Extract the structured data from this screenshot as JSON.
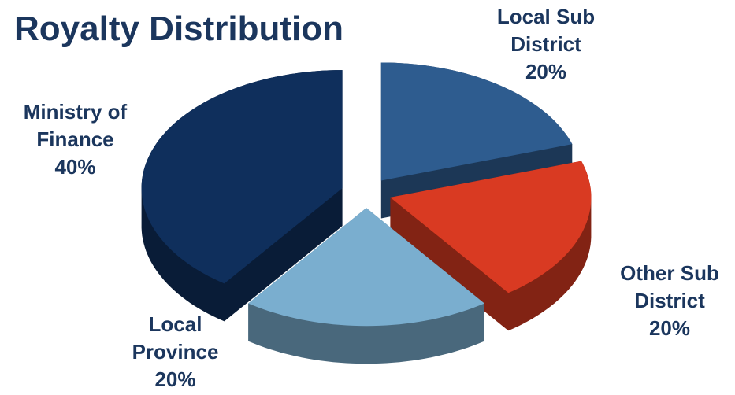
{
  "chart_data": {
    "type": "pie",
    "title": "Royalty Distribution",
    "categories": [
      "Local Sub District",
      "Other Sub District",
      "Local Province",
      "Ministry of Finance"
    ],
    "values": [
      20,
      20,
      20,
      40
    ],
    "value_labels": [
      "20%",
      "20%",
      "20%",
      "40%"
    ],
    "colors": [
      "#2e5c8f",
      "#d93a22",
      "#7aaecf",
      "#0f2f5c"
    ]
  }
}
